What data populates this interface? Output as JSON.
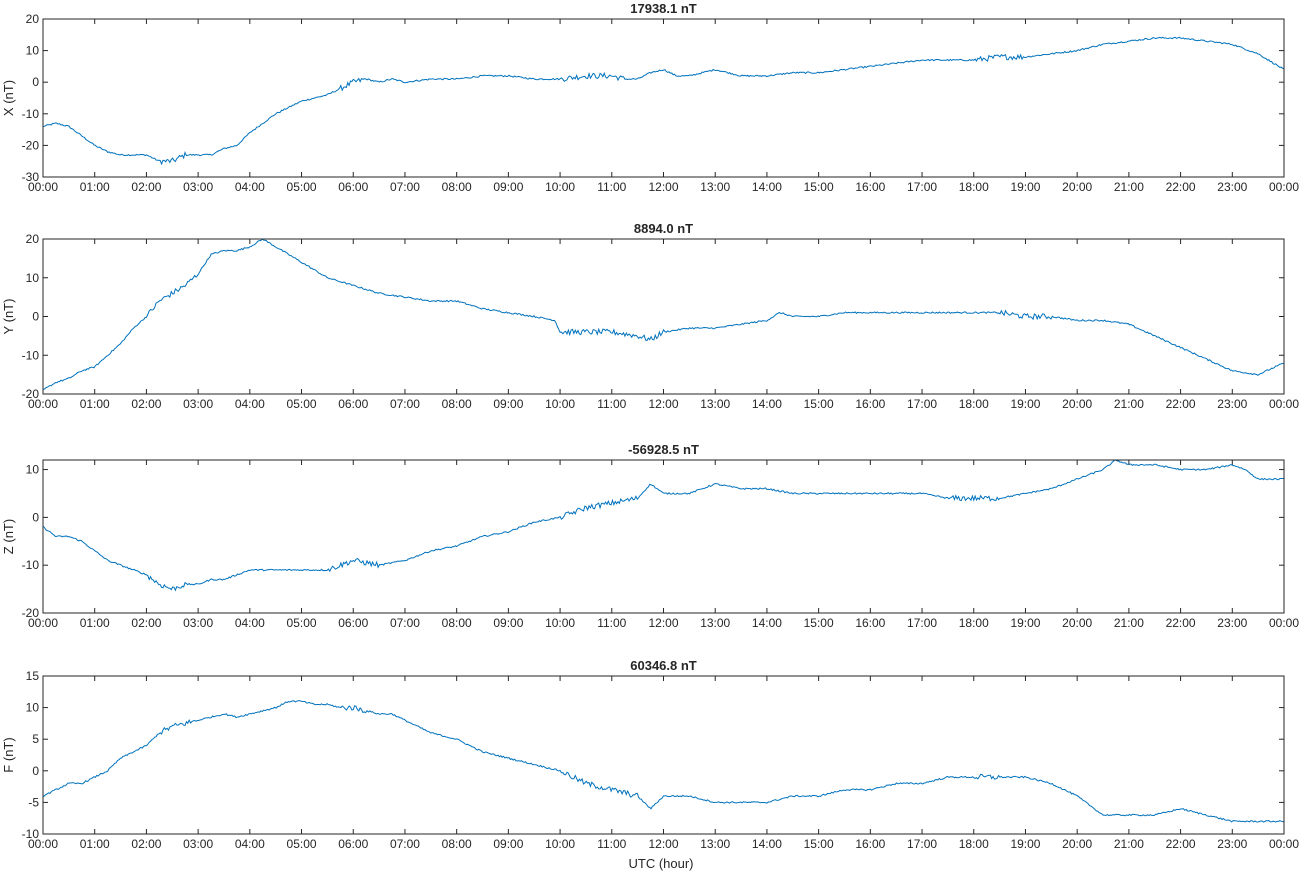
{
  "figure": {
    "xlabel": "UTC (hour)",
    "line_color": "#0072bd"
  },
  "chart_data": [
    {
      "type": "line",
      "title": "17938.1 nT",
      "ylabel": "X (nT)",
      "xlim": [
        0,
        24
      ],
      "ylim": [
        -30,
        20
      ],
      "yticks": [
        -30,
        -20,
        -10,
        0,
        10,
        20
      ],
      "xtick_labels": [
        "00:00",
        "01:00",
        "02:00",
        "03:00",
        "04:00",
        "05:00",
        "06:00",
        "07:00",
        "08:00",
        "09:00",
        "10:00",
        "11:00",
        "12:00",
        "13:00",
        "14:00",
        "15:00",
        "16:00",
        "17:00",
        "18:00",
        "19:00",
        "20:00",
        "21:00",
        "22:00",
        "23:00",
        "00:00"
      ],
      "x": [
        0,
        0.25,
        0.5,
        0.75,
        1,
        1.25,
        1.5,
        1.75,
        2,
        2.25,
        2.5,
        2.75,
        3,
        3.25,
        3.5,
        3.75,
        4,
        4.25,
        4.5,
        4.75,
        5,
        5.25,
        5.5,
        5.75,
        6,
        6.25,
        6.5,
        6.75,
        7,
        7.5,
        8,
        8.5,
        9,
        9.5,
        10,
        10.5,
        11,
        11.25,
        11.5,
        11.75,
        12,
        12.25,
        12.5,
        12.75,
        13,
        13.5,
        14,
        14.5,
        15,
        15.5,
        16,
        16.5,
        17,
        17.5,
        18,
        18.5,
        19,
        19.5,
        20,
        20.5,
        21,
        21.5,
        22,
        22.5,
        23,
        23.5,
        24
      ],
      "values": [
        -14,
        -13,
        -14,
        -17,
        -20,
        -22,
        -23,
        -23,
        -23,
        -25,
        -25,
        -23,
        -23,
        -23,
        -21,
        -20,
        -16,
        -13,
        -10,
        -8,
        -6,
        -5,
        -4,
        -2,
        0,
        1,
        0,
        1,
        0,
        1,
        1,
        2,
        2,
        1,
        1,
        2,
        2,
        1,
        1,
        3,
        4,
        2,
        2,
        3,
        4,
        2,
        2,
        3,
        3,
        4,
        5,
        6,
        7,
        7,
        7,
        8,
        8,
        9,
        10,
        12,
        13,
        14,
        14,
        13,
        12,
        9,
        4
      ],
      "noise": [
        0,
        0,
        0,
        0,
        0,
        0,
        0,
        0,
        0,
        1,
        1,
        0,
        0,
        0,
        0,
        0,
        0,
        0,
        0,
        0,
        0,
        0,
        0,
        1,
        1,
        0,
        0,
        0,
        0,
        0,
        0,
        0,
        0,
        0,
        1,
        1,
        1,
        0,
        0,
        0,
        0,
        0,
        0,
        0,
        0,
        0,
        0,
        0,
        0,
        0,
        0,
        0,
        0,
        0,
        1,
        1,
        0,
        0,
        0,
        0,
        0,
        0,
        0,
        0,
        0,
        0,
        0
      ]
    },
    {
      "type": "line",
      "title": "8894.0 nT",
      "ylabel": "Y (nT)",
      "xlim": [
        0,
        24
      ],
      "ylim": [
        -20,
        20
      ],
      "yticks": [
        -20,
        -10,
        0,
        10,
        20
      ],
      "xtick_labels": [
        "00:00",
        "01:00",
        "02:00",
        "03:00",
        "04:00",
        "05:00",
        "06:00",
        "07:00",
        "08:00",
        "09:00",
        "10:00",
        "11:00",
        "12:00",
        "13:00",
        "14:00",
        "15:00",
        "16:00",
        "17:00",
        "18:00",
        "19:00",
        "20:00",
        "21:00",
        "22:00",
        "23:00",
        "00:00"
      ],
      "x": [
        0,
        0.25,
        0.5,
        0.75,
        1,
        1.25,
        1.5,
        1.75,
        2,
        2.25,
        2.5,
        2.75,
        3,
        3.25,
        3.5,
        3.75,
        4,
        4.25,
        4.5,
        4.75,
        5,
        5.25,
        5.5,
        5.75,
        6,
        6.5,
        7,
        7.5,
        8,
        8.5,
        9,
        9.5,
        9.9,
        10,
        10.5,
        11,
        11.5,
        11.75,
        12,
        12.5,
        13,
        13.5,
        14,
        14.25,
        14.5,
        15,
        15.5,
        16,
        16.5,
        17,
        17.5,
        18,
        18.5,
        19,
        19.5,
        20,
        20.5,
        21,
        21.5,
        22,
        22.5,
        23,
        23.5,
        24
      ],
      "values": [
        -19,
        -17,
        -16,
        -14,
        -13,
        -10,
        -7,
        -3,
        0,
        4,
        6,
        8,
        11,
        16,
        17,
        17,
        18,
        20,
        18,
        16,
        14,
        12,
        10,
        9,
        8,
        6,
        5,
        4,
        4,
        2,
        1,
        0,
        -1,
        -4,
        -4,
        -4,
        -5,
        -6,
        -4,
        -3,
        -3,
        -2,
        -1,
        1,
        0,
        0,
        1,
        1,
        1,
        1,
        1,
        1,
        1,
        0,
        0,
        -1,
        -1,
        -2,
        -5,
        -8,
        -11,
        -14,
        -15,
        -12
      ],
      "noise": [
        0,
        0,
        0,
        0,
        0,
        0,
        0,
        0,
        1,
        1,
        1,
        1,
        0,
        0,
        0,
        0,
        0,
        0,
        0,
        0,
        0,
        0,
        0,
        0,
        0,
        0,
        0,
        0,
        0,
        0,
        0,
        0,
        0,
        1,
        1,
        1,
        1,
        1,
        0,
        0,
        0,
        0,
        0,
        0,
        0,
        0,
        0,
        0,
        0,
        0,
        0,
        0,
        1,
        1,
        0,
        0,
        0,
        0,
        0,
        0,
        0,
        0,
        0,
        0
      ]
    },
    {
      "type": "line",
      "title": "-56928.5 nT",
      "ylabel": "Z (nT)",
      "xlim": [
        0,
        24
      ],
      "ylim": [
        -20,
        12
      ],
      "yticks": [
        -20,
        -10,
        0,
        10
      ],
      "xtick_labels": [
        "00:00",
        "01:00",
        "02:00",
        "03:00",
        "04:00",
        "05:00",
        "06:00",
        "07:00",
        "08:00",
        "09:00",
        "10:00",
        "11:00",
        "12:00",
        "13:00",
        "14:00",
        "15:00",
        "16:00",
        "17:00",
        "18:00",
        "19:00",
        "20:00",
        "21:00",
        "22:00",
        "23:00",
        "00:00"
      ],
      "x": [
        0,
        0.25,
        0.5,
        0.75,
        1,
        1.25,
        1.5,
        1.75,
        2,
        2.25,
        2.5,
        2.75,
        3,
        3.25,
        3.5,
        3.75,
        4,
        4.5,
        5,
        5.5,
        5.75,
        6,
        6.5,
        7,
        7.5,
        8,
        8.5,
        9,
        9.5,
        10,
        10.5,
        11,
        11.5,
        11.75,
        12,
        12.5,
        13,
        13.5,
        14,
        14.5,
        15,
        15.5,
        16,
        16.5,
        17,
        17.5,
        18,
        18.5,
        19,
        19.5,
        20,
        20.5,
        20.75,
        21,
        21.5,
        22,
        22.5,
        23,
        23.25,
        23.5,
        24
      ],
      "values": [
        -2,
        -4,
        -4,
        -5,
        -7,
        -9,
        -10,
        -11,
        -12,
        -14,
        -15,
        -14,
        -14,
        -13,
        -13,
        -12,
        -11,
        -11,
        -11,
        -11,
        -10,
        -9,
        -10,
        -9,
        -7,
        -6,
        -4,
        -3,
        -1,
        0,
        2,
        3,
        4,
        7,
        5,
        5,
        7,
        6,
        6,
        5,
        5,
        5,
        5,
        5,
        5,
        4,
        4,
        4,
        5,
        6,
        8,
        10,
        12,
        11,
        11,
        10,
        10,
        11,
        10,
        8,
        8
      ],
      "noise": [
        0,
        0,
        0,
        0,
        0,
        0,
        0,
        0,
        1,
        1,
        1,
        0,
        0,
        0,
        0,
        0,
        0,
        0,
        0,
        1,
        1,
        1,
        0,
        0,
        0,
        0,
        0,
        0,
        0,
        1,
        1,
        1,
        0,
        0,
        0,
        0,
        0,
        0,
        0,
        0,
        0,
        0,
        0,
        0,
        0,
        1,
        1,
        0,
        0,
        0,
        0,
        0,
        0,
        0,
        0,
        0,
        0,
        0,
        0,
        0,
        0
      ]
    },
    {
      "type": "line",
      "title": "60346.8 nT",
      "ylabel": "F (nT)",
      "xlim": [
        0,
        24
      ],
      "ylim": [
        -10,
        15
      ],
      "yticks": [
        -10,
        -5,
        0,
        5,
        10,
        15
      ],
      "xtick_labels": [
        "00:00",
        "01:00",
        "02:00",
        "03:00",
        "04:00",
        "05:00",
        "06:00",
        "07:00",
        "08:00",
        "09:00",
        "10:00",
        "11:00",
        "12:00",
        "13:00",
        "14:00",
        "15:00",
        "16:00",
        "17:00",
        "18:00",
        "19:00",
        "20:00",
        "21:00",
        "22:00",
        "23:00",
        "00:00"
      ],
      "x": [
        0,
        0.25,
        0.5,
        0.75,
        1,
        1.25,
        1.5,
        1.75,
        2,
        2.25,
        2.5,
        2.75,
        3,
        3.25,
        3.5,
        3.75,
        4,
        4.25,
        4.5,
        4.75,
        5,
        5.25,
        5.5,
        5.75,
        6,
        6.25,
        6.5,
        6.75,
        7,
        7.5,
        8,
        8.5,
        9,
        9.5,
        10,
        10.5,
        11,
        11.5,
        11.75,
        12,
        12.5,
        13,
        13.5,
        14,
        14.5,
        15,
        15.5,
        16,
        16.5,
        17,
        17.5,
        18,
        18.5,
        19,
        19.5,
        20,
        20.5,
        21,
        21.5,
        22,
        22.5,
        23,
        23.5,
        24
      ],
      "values": [
        -4,
        -3,
        -2,
        -2,
        -1,
        0,
        2,
        3,
        4,
        6,
        7,
        7.5,
        8,
        8.5,
        9,
        8.5,
        9,
        9.5,
        10,
        11,
        11,
        10.5,
        10.5,
        10,
        10,
        9.5,
        9,
        9,
        8,
        6,
        5,
        3,
        2,
        1,
        0,
        -2,
        -3,
        -4,
        -6,
        -4,
        -4,
        -5,
        -5,
        -5,
        -4,
        -4,
        -3,
        -3,
        -2,
        -2,
        -1,
        -1,
        -1,
        -1,
        -2,
        -4,
        -7,
        -7,
        -7,
        -6,
        -7,
        -8,
        -8,
        -8
      ],
      "noise": [
        0,
        0,
        0,
        0,
        0,
        0,
        0,
        0,
        0,
        1,
        1,
        1,
        0,
        0,
        0,
        0,
        0,
        0,
        0,
        0,
        0,
        0,
        0,
        1,
        1,
        0,
        0,
        0,
        0,
        0,
        0,
        0,
        0,
        0,
        1,
        1,
        1,
        0,
        0,
        0,
        0,
        0,
        0,
        0,
        0,
        0,
        0,
        0,
        0,
        0,
        0,
        1,
        0,
        0,
        0,
        0,
        0,
        0,
        0,
        0,
        0,
        0,
        0,
        0
      ]
    }
  ]
}
